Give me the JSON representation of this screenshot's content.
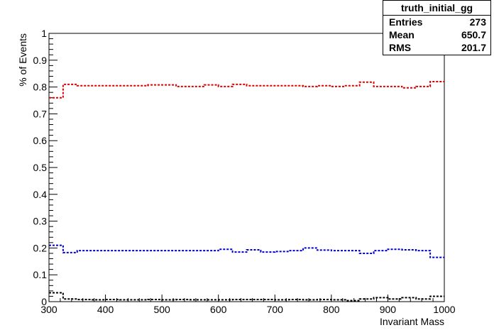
{
  "chart_data": {
    "type": "line",
    "title": "",
    "xlabel": "Invariant Mass",
    "ylabel": "% of Events",
    "xlim": [
      300,
      1000
    ],
    "ylim": [
      0,
      1
    ],
    "xticks": [
      "300",
      "400",
      "500",
      "600",
      "700",
      "800",
      "900",
      "1000"
    ],
    "yticks": [
      "0",
      "0.1",
      "0.2",
      "0.3",
      "0.4",
      "0.5",
      "0.6",
      "0.7",
      "0.8",
      "0.9",
      "1"
    ],
    "x": [
      300,
      325,
      350,
      375,
      400,
      425,
      450,
      475,
      500,
      525,
      550,
      575,
      600,
      625,
      650,
      675,
      700,
      725,
      750,
      775,
      800,
      825,
      850,
      875,
      900,
      925,
      950,
      975
    ],
    "series": [
      {
        "color": "#dd0000",
        "values": [
          0.76,
          0.81,
          0.805,
          0.805,
          0.805,
          0.805,
          0.805,
          0.808,
          0.808,
          0.802,
          0.802,
          0.808,
          0.802,
          0.81,
          0.805,
          0.805,
          0.805,
          0.805,
          0.802,
          0.805,
          0.802,
          0.805,
          0.818,
          0.802,
          0.802,
          0.797,
          0.802,
          0.82
        ]
      },
      {
        "color": "#0000cc",
        "values": [
          0.21,
          0.183,
          0.19,
          0.19,
          0.19,
          0.19,
          0.19,
          0.19,
          0.19,
          0.19,
          0.19,
          0.19,
          0.195,
          0.185,
          0.193,
          0.185,
          0.187,
          0.19,
          0.2,
          0.192,
          0.19,
          0.19,
          0.18,
          0.19,
          0.195,
          0.193,
          0.19,
          0.165
        ]
      },
      {
        "color": "#000000",
        "values": [
          0.033,
          0.01,
          0.008,
          0.007,
          0.008,
          0.007,
          0.007,
          0.008,
          0.007,
          0.008,
          0.007,
          0.007,
          0.007,
          0.008,
          0.008,
          0.008,
          0.007,
          0.008,
          0.007,
          0.008,
          0.007,
          0.004,
          0.01,
          0.015,
          0.01,
          0.015,
          0.01,
          0.02
        ]
      }
    ],
    "grid": false,
    "legend": "none"
  },
  "stats": {
    "title": "truth_initial_gg",
    "rows": [
      {
        "label": "Entries",
        "value": "273"
      },
      {
        "label": "Mean",
        "value": "650.7"
      },
      {
        "label": "RMS",
        "value": "201.7"
      }
    ]
  }
}
